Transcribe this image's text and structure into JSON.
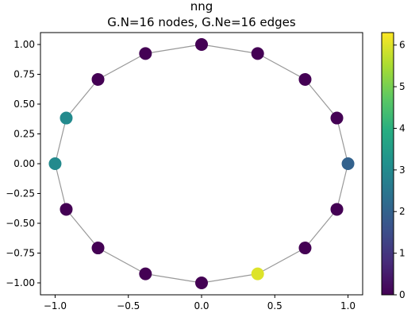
{
  "chart_data": {
    "type": "scatter",
    "title": "nng",
    "subtitle": "G.N=16 nodes, G.Ne=16 edges",
    "xlim": [
      -1.1,
      1.1
    ],
    "ylim": [
      -1.1,
      1.1
    ],
    "x_ticks": [
      -1.0,
      -0.5,
      0.0,
      0.5,
      1.0
    ],
    "x_tick_labels": [
      "−1.0",
      "−0.5",
      "0.0",
      "0.5",
      "1.0"
    ],
    "y_ticks": [
      1.0,
      0.75,
      0.5,
      0.25,
      0.0,
      -0.25,
      -0.5,
      -0.75,
      -1.0
    ],
    "y_tick_labels": [
      "1.00",
      "0.75",
      "0.50",
      "0.25",
      "0.00",
      "−0.25",
      "−0.50",
      "−0.75",
      "−1.00"
    ],
    "grid": false,
    "colormap": "viridis",
    "colorbar": {
      "range": [
        0,
        6.3
      ],
      "ticks": [
        0,
        1,
        2,
        3,
        4,
        5,
        6
      ],
      "tick_labels": [
        "0",
        "1",
        "2",
        "3",
        "4",
        "5",
        "6"
      ]
    },
    "nodes": [
      {
        "x": 1.0,
        "y": 0.0,
        "value": 2.0
      },
      {
        "x": 0.924,
        "y": 0.383,
        "value": 0.0
      },
      {
        "x": 0.707,
        "y": 0.707,
        "value": 0.0
      },
      {
        "x": 0.383,
        "y": 0.924,
        "value": 0.0
      },
      {
        "x": 0.0,
        "y": 1.0,
        "value": 0.0
      },
      {
        "x": -0.383,
        "y": 0.924,
        "value": 0.0
      },
      {
        "x": -0.707,
        "y": 0.707,
        "value": 0.0
      },
      {
        "x": -0.924,
        "y": 0.383,
        "value": 3.0
      },
      {
        "x": -1.0,
        "y": 0.0,
        "value": 3.0
      },
      {
        "x": -0.924,
        "y": -0.383,
        "value": 0.0
      },
      {
        "x": -0.707,
        "y": -0.707,
        "value": 0.0
      },
      {
        "x": -0.383,
        "y": -0.924,
        "value": 0.0
      },
      {
        "x": 0.0,
        "y": -1.0,
        "value": 0.0
      },
      {
        "x": 0.383,
        "y": -0.924,
        "value": 6.0
      },
      {
        "x": 0.707,
        "y": -0.707,
        "value": 0.0
      },
      {
        "x": 0.924,
        "y": -0.383,
        "value": 0.0
      }
    ],
    "edges": [
      [
        0,
        1
      ],
      [
        1,
        2
      ],
      [
        2,
        3
      ],
      [
        3,
        4
      ],
      [
        4,
        5
      ],
      [
        5,
        6
      ],
      [
        6,
        7
      ],
      [
        7,
        8
      ],
      [
        8,
        9
      ],
      [
        9,
        10
      ],
      [
        10,
        11
      ],
      [
        11,
        12
      ],
      [
        12,
        13
      ],
      [
        13,
        14
      ],
      [
        14,
        15
      ],
      [
        15,
        0
      ]
    ],
    "edge_color": "#999999"
  }
}
